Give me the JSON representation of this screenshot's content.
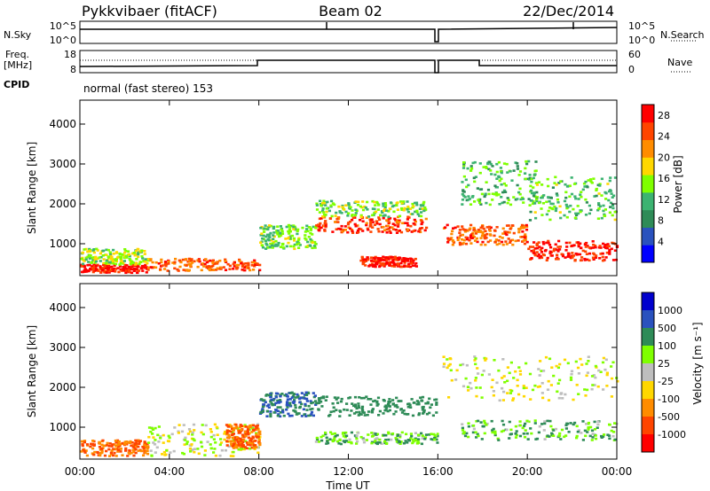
{
  "header": {
    "radar": "Pykkvibaer (fitACF)",
    "beam": "Beam 02",
    "date": "22/Dec/2014"
  },
  "strips": {
    "nsky_label": "N.Sky",
    "nsky_ticks": [
      "10^5",
      "10^0"
    ],
    "nsearch_label": "N.Search",
    "nsearch_ticks": [
      "10^5",
      "10^0"
    ],
    "freq_label_line1": "Freq.",
    "freq_label_line2": "[MHz]",
    "freq_ticks": [
      "18",
      "8"
    ],
    "nave_label": "Nave",
    "nave_ticks": [
      "60",
      "0"
    ],
    "cpid_label": "CPID",
    "cpid_text": "normal (fast stereo) 153"
  },
  "colors": {
    "power": [
      "#0000ff",
      "#2a52be",
      "#2e8b57",
      "#3cb371",
      "#7fff00",
      "#ffd700",
      "#ff8c00",
      "#ff4500",
      "#ff0000"
    ],
    "velocity": [
      "#0000cd",
      "#2a52be",
      "#2e8b57",
      "#7fff00",
      "#bebebe",
      "#ffd700",
      "#ff8c00",
      "#ff4500",
      "#ff0000"
    ]
  },
  "chart_data": [
    {
      "type": "heatmap",
      "name": "power",
      "ylabel": "Slant Range [km]",
      "yticks": [
        "1000",
        "2000",
        "3000",
        "4000"
      ],
      "ylim": [
        200,
        4600
      ],
      "x_ticks": [
        "00:00",
        "04:00",
        "08:00",
        "12:00",
        "16:00",
        "20:00",
        "00:00"
      ],
      "xlim_hours": [
        0,
        24
      ],
      "colorbar": {
        "label": "Power [dB]",
        "ticks": [
          "4",
          "8",
          "12",
          "16",
          "20",
          "24",
          "28"
        ],
        "range": [
          0,
          30
        ]
      },
      "bands": [
        {
          "t0": 0.0,
          "t1": 3.0,
          "r0": 300,
          "r1": 500,
          "value": 28
        },
        {
          "t0": 0.0,
          "t1": 3.0,
          "r0": 500,
          "r1": 900,
          "value": 16
        },
        {
          "t0": 3.0,
          "t1": 8.0,
          "r0": 350,
          "r1": 650,
          "value": 24
        },
        {
          "t0": 8.0,
          "t1": 10.5,
          "r0": 900,
          "r1": 1500,
          "value": 14
        },
        {
          "t0": 10.5,
          "t1": 15.5,
          "r0": 1300,
          "r1": 1700,
          "value": 26
        },
        {
          "t0": 10.5,
          "t1": 15.5,
          "r0": 1700,
          "r1": 2100,
          "value": 14
        },
        {
          "t0": 12.5,
          "t1": 15.0,
          "r0": 450,
          "r1": 700,
          "value": 28
        },
        {
          "t0": 16.2,
          "t1": 20.0,
          "r0": 1000,
          "r1": 1500,
          "value": 24
        },
        {
          "t0": 17.0,
          "t1": 20.5,
          "r0": 2000,
          "r1": 3100,
          "value": 12
        },
        {
          "t0": 20.0,
          "t1": 24.0,
          "r0": 600,
          "r1": 1100,
          "value": 28
        },
        {
          "t0": 20.0,
          "t1": 24.0,
          "r0": 1600,
          "r1": 2700,
          "value": 13
        }
      ]
    },
    {
      "type": "heatmap",
      "name": "velocity",
      "ylabel": "Slant Range [km]",
      "yticks": [
        "1000",
        "2000",
        "3000",
        "4000"
      ],
      "ylim": [
        200,
        4600
      ],
      "x_ticks": [
        "00:00",
        "04:00",
        "08:00",
        "12:00",
        "16:00",
        "20:00",
        "00:00"
      ],
      "xlim_hours": [
        0,
        24
      ],
      "xlabel": "Time UT",
      "colorbar": {
        "label": "Velocity [m s⁻¹]",
        "ticks": [
          "1000",
          "500",
          "100",
          "25",
          "-25",
          "-100",
          "-500",
          "-1000"
        ]
      },
      "bands": [
        {
          "t0": 0.0,
          "t1": 3.0,
          "r0": 300,
          "r1": 700,
          "value": -500
        },
        {
          "t0": 3.0,
          "t1": 8.0,
          "r0": 300,
          "r1": 1100,
          "value": 0
        },
        {
          "t0": 6.5,
          "t1": 8.0,
          "r0": 500,
          "r1": 1100,
          "value": -500
        },
        {
          "t0": 8.0,
          "t1": 10.5,
          "r0": 1300,
          "r1": 1900,
          "value": 500
        },
        {
          "t0": 10.5,
          "t1": 16.0,
          "r0": 1300,
          "r1": 1800,
          "value": 300
        },
        {
          "t0": 10.5,
          "t1": 16.0,
          "r0": 600,
          "r1": 900,
          "value": 100
        },
        {
          "t0": 16.2,
          "t1": 24.0,
          "r0": 1700,
          "r1": 2800,
          "value": 0
        },
        {
          "t0": 17.0,
          "t1": 24.0,
          "r0": 700,
          "r1": 1200,
          "value": 100
        }
      ]
    }
  ]
}
